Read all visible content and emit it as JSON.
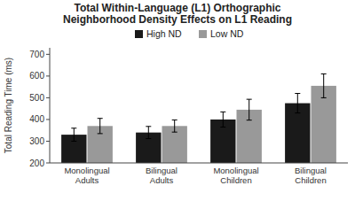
{
  "chart_data": {
    "type": "bar",
    "title": "Total Within-Language (L1) Orthographic\nNeighborhood Density Effects on L1 Reading",
    "ylabel": "Total Reading Time (ms)",
    "categories": [
      "Monolingual\nAdults",
      "Bilingual\nAdults",
      "Monolingual\nChildren",
      "Bilingual\nChildren"
    ],
    "series": [
      {
        "name": "High ND",
        "color": "#1a1a1a",
        "values": [
          330,
          340,
          400,
          475
        ],
        "errors": [
          30,
          28,
          35,
          45
        ]
      },
      {
        "name": "Low ND",
        "color": "#999999",
        "values": [
          370,
          370,
          445,
          555
        ],
        "errors": [
          35,
          28,
          48,
          55
        ]
      }
    ],
    "ylim": [
      200,
      730
    ],
    "yticks": [
      200,
      300,
      400,
      500,
      600,
      700
    ],
    "grid": false,
    "legend": "top"
  }
}
